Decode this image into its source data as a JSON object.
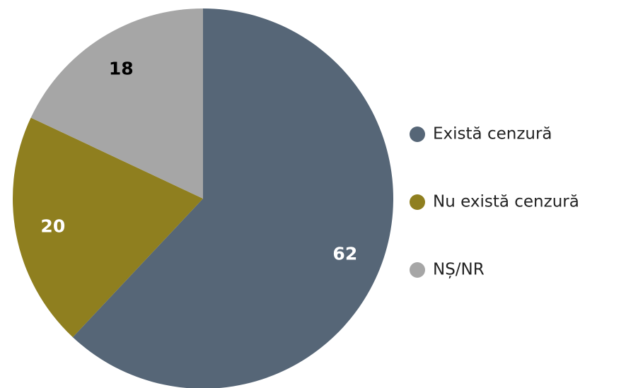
{
  "chart_data": {
    "type": "pie",
    "categories": [
      "Există cenzură",
      "Nu există cenzură",
      "NȘ/NR"
    ],
    "values": [
      62,
      20,
      18
    ],
    "colors": [
      "#566677",
      "#8f7f1f",
      "#a6a6a6"
    ],
    "legend": "right"
  }
}
